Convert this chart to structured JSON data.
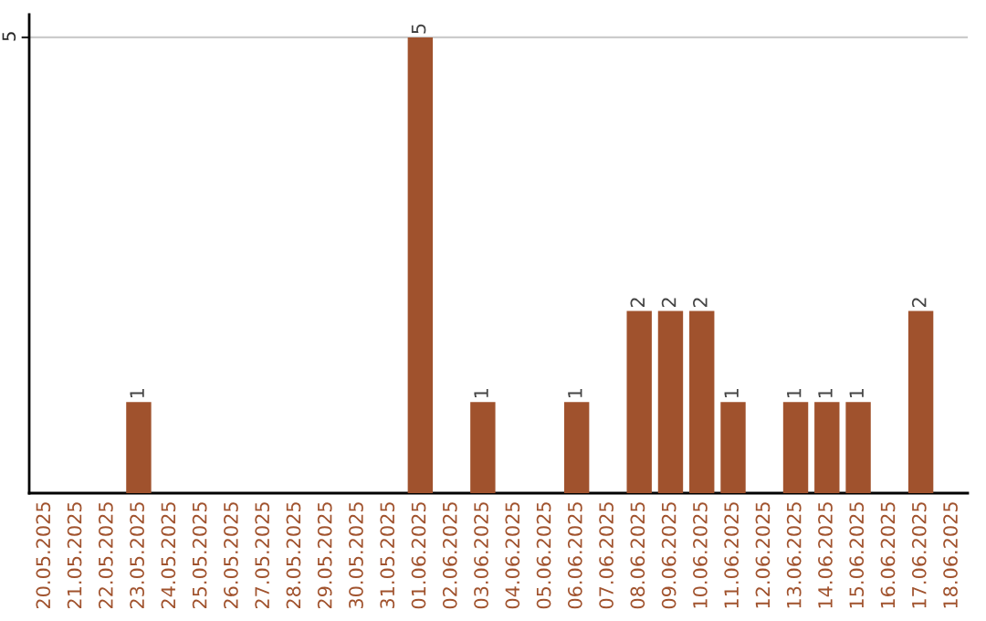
{
  "chart_data": {
    "type": "bar",
    "categories": [
      "20.05.2025",
      "21.05.2025",
      "22.05.2025",
      "23.05.2025",
      "24.05.2025",
      "25.05.2025",
      "26.05.2025",
      "27.05.2025",
      "28.05.2025",
      "29.05.2025",
      "30.05.2025",
      "31.05.2025",
      "01.06.2025",
      "02.06.2025",
      "03.06.2025",
      "04.06.2025",
      "05.06.2025",
      "06.06.2025",
      "07.06.2025",
      "08.06.2025",
      "09.06.2025",
      "10.06.2025",
      "11.06.2025",
      "12.06.2025",
      "13.06.2025",
      "14.06.2025",
      "15.06.2025",
      "16.06.2025",
      "17.06.2025",
      "18.06.2025"
    ],
    "values": [
      null,
      null,
      null,
      1,
      null,
      null,
      null,
      null,
      null,
      null,
      null,
      null,
      5,
      null,
      1,
      null,
      null,
      1,
      null,
      2,
      2,
      2,
      1,
      null,
      1,
      1,
      1,
      null,
      2,
      null
    ],
    "value_labels": [
      null,
      null,
      null,
      "1",
      null,
      null,
      null,
      null,
      null,
      null,
      null,
      null,
      "5",
      null,
      "1",
      null,
      null,
      "1",
      null,
      "2",
      "2",
      "2",
      "1",
      null,
      "1",
      "1",
      "1",
      null,
      "2",
      null
    ],
    "color": "#a0522d",
    "ylim": [
      0,
      5.25
    ],
    "yticks": [
      5
    ],
    "grid": "y"
  }
}
